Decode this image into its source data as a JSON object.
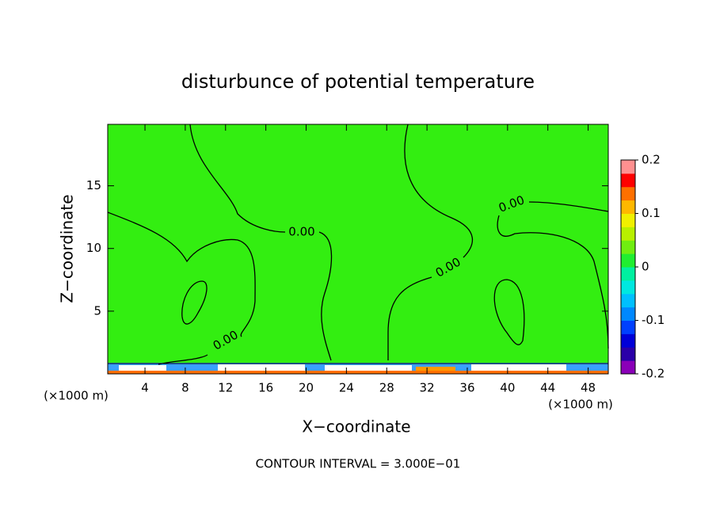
{
  "chart_data": {
    "type": "contour",
    "title": "disturbunce of potential temperature",
    "xlabel": "X−coordinate",
    "ylabel": "Z−coordinate",
    "xunit": "(×1000 m)",
    "xlim": [
      0.3,
      50
    ],
    "xticks": [
      4,
      8,
      12,
      16,
      20,
      24,
      28,
      32,
      36,
      40,
      44,
      48
    ],
    "ylim": [
      0,
      19.9
    ],
    "yticks": [
      5,
      10,
      15
    ],
    "clim": [
      -0.2,
      0.2
    ],
    "cticks": [
      -0.2,
      -0.1,
      0,
      0.1,
      0.2
    ],
    "colormap": [
      "#8a00b8",
      "#2a00a8",
      "#0000d8",
      "#0040ff",
      "#0088ff",
      "#00c0ff",
      "#00e8e0",
      "#00f0a0",
      "#20ee30",
      "#70ee10",
      "#b8f000",
      "#f0f000",
      "#ffb800",
      "#ff7000",
      "#ff0000",
      "#ff9090"
    ],
    "field_color": "#33ee11",
    "contour_labels": [
      "0.00",
      "0.00",
      "0.00",
      "0.00"
    ],
    "annotation": "CONTOUR INTERVAL = 3.000E−01"
  }
}
